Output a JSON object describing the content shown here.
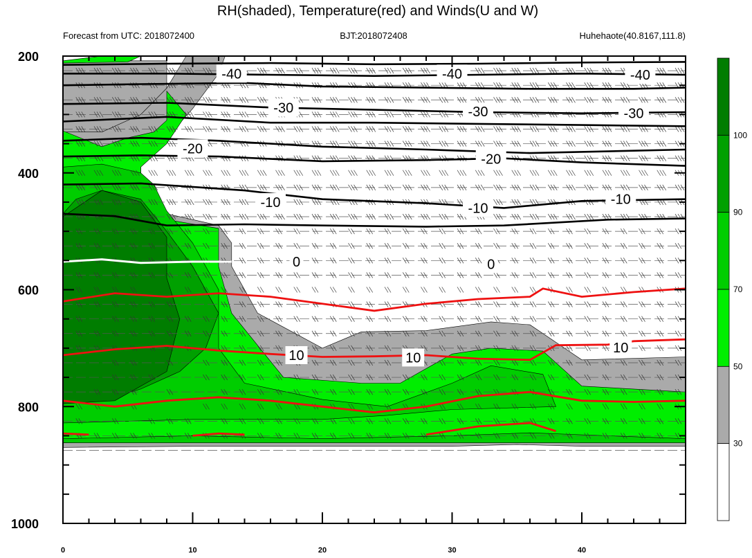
{
  "chart_data": {
    "type": "contour",
    "title": "RH(shaded), Temperature(red) and Winds(U and W)",
    "subtitle_left": "Forecast from UTC: 2018072400",
    "subtitle_center": "BJT:2018072408",
    "subtitle_right": "Huhehaote(40.8167,111.8)",
    "x_ticks": [
      0,
      10,
      20,
      30,
      40
    ],
    "xlim": [
      0,
      48
    ],
    "y_ticks": [
      200,
      400,
      600,
      800,
      1000
    ],
    "ylim": [
      200,
      1000
    ],
    "y_inverted": true,
    "colorbar": {
      "levels": [
        30,
        50,
        70,
        90,
        100
      ],
      "colors": [
        "#ffffff",
        "#aaaaaa",
        "#00ee00",
        "#00cd00",
        "#00a000",
        "#007d00"
      ]
    },
    "temperature_labels": [
      {
        "value": "-40",
        "x": 13,
        "p": 230
      },
      {
        "value": "-40",
        "x": 30,
        "p": 230
      },
      {
        "value": "-40",
        "x": 44.5,
        "p": 232
      },
      {
        "value": "-30",
        "x": 17,
        "p": 288
      },
      {
        "value": "-30",
        "x": 32,
        "p": 295
      },
      {
        "value": "-30",
        "x": 44,
        "p": 298
      },
      {
        "value": "-20",
        "x": 10,
        "p": 358
      },
      {
        "value": "-20",
        "x": 33,
        "p": 376
      },
      {
        "value": "-10",
        "x": 16,
        "p": 450
      },
      {
        "value": "-10",
        "x": 32,
        "p": 460
      },
      {
        "value": "-10",
        "x": 43,
        "p": 445
      },
      {
        "value": "0",
        "x": 18,
        "p": 552
      },
      {
        "value": "0",
        "x": 33,
        "p": 556
      },
      {
        "value": "10",
        "x": 18,
        "p": 712
      },
      {
        "value": "10",
        "x": 27,
        "p": 716
      },
      {
        "value": "10",
        "x": 43,
        "p": 699
      }
    ]
  }
}
